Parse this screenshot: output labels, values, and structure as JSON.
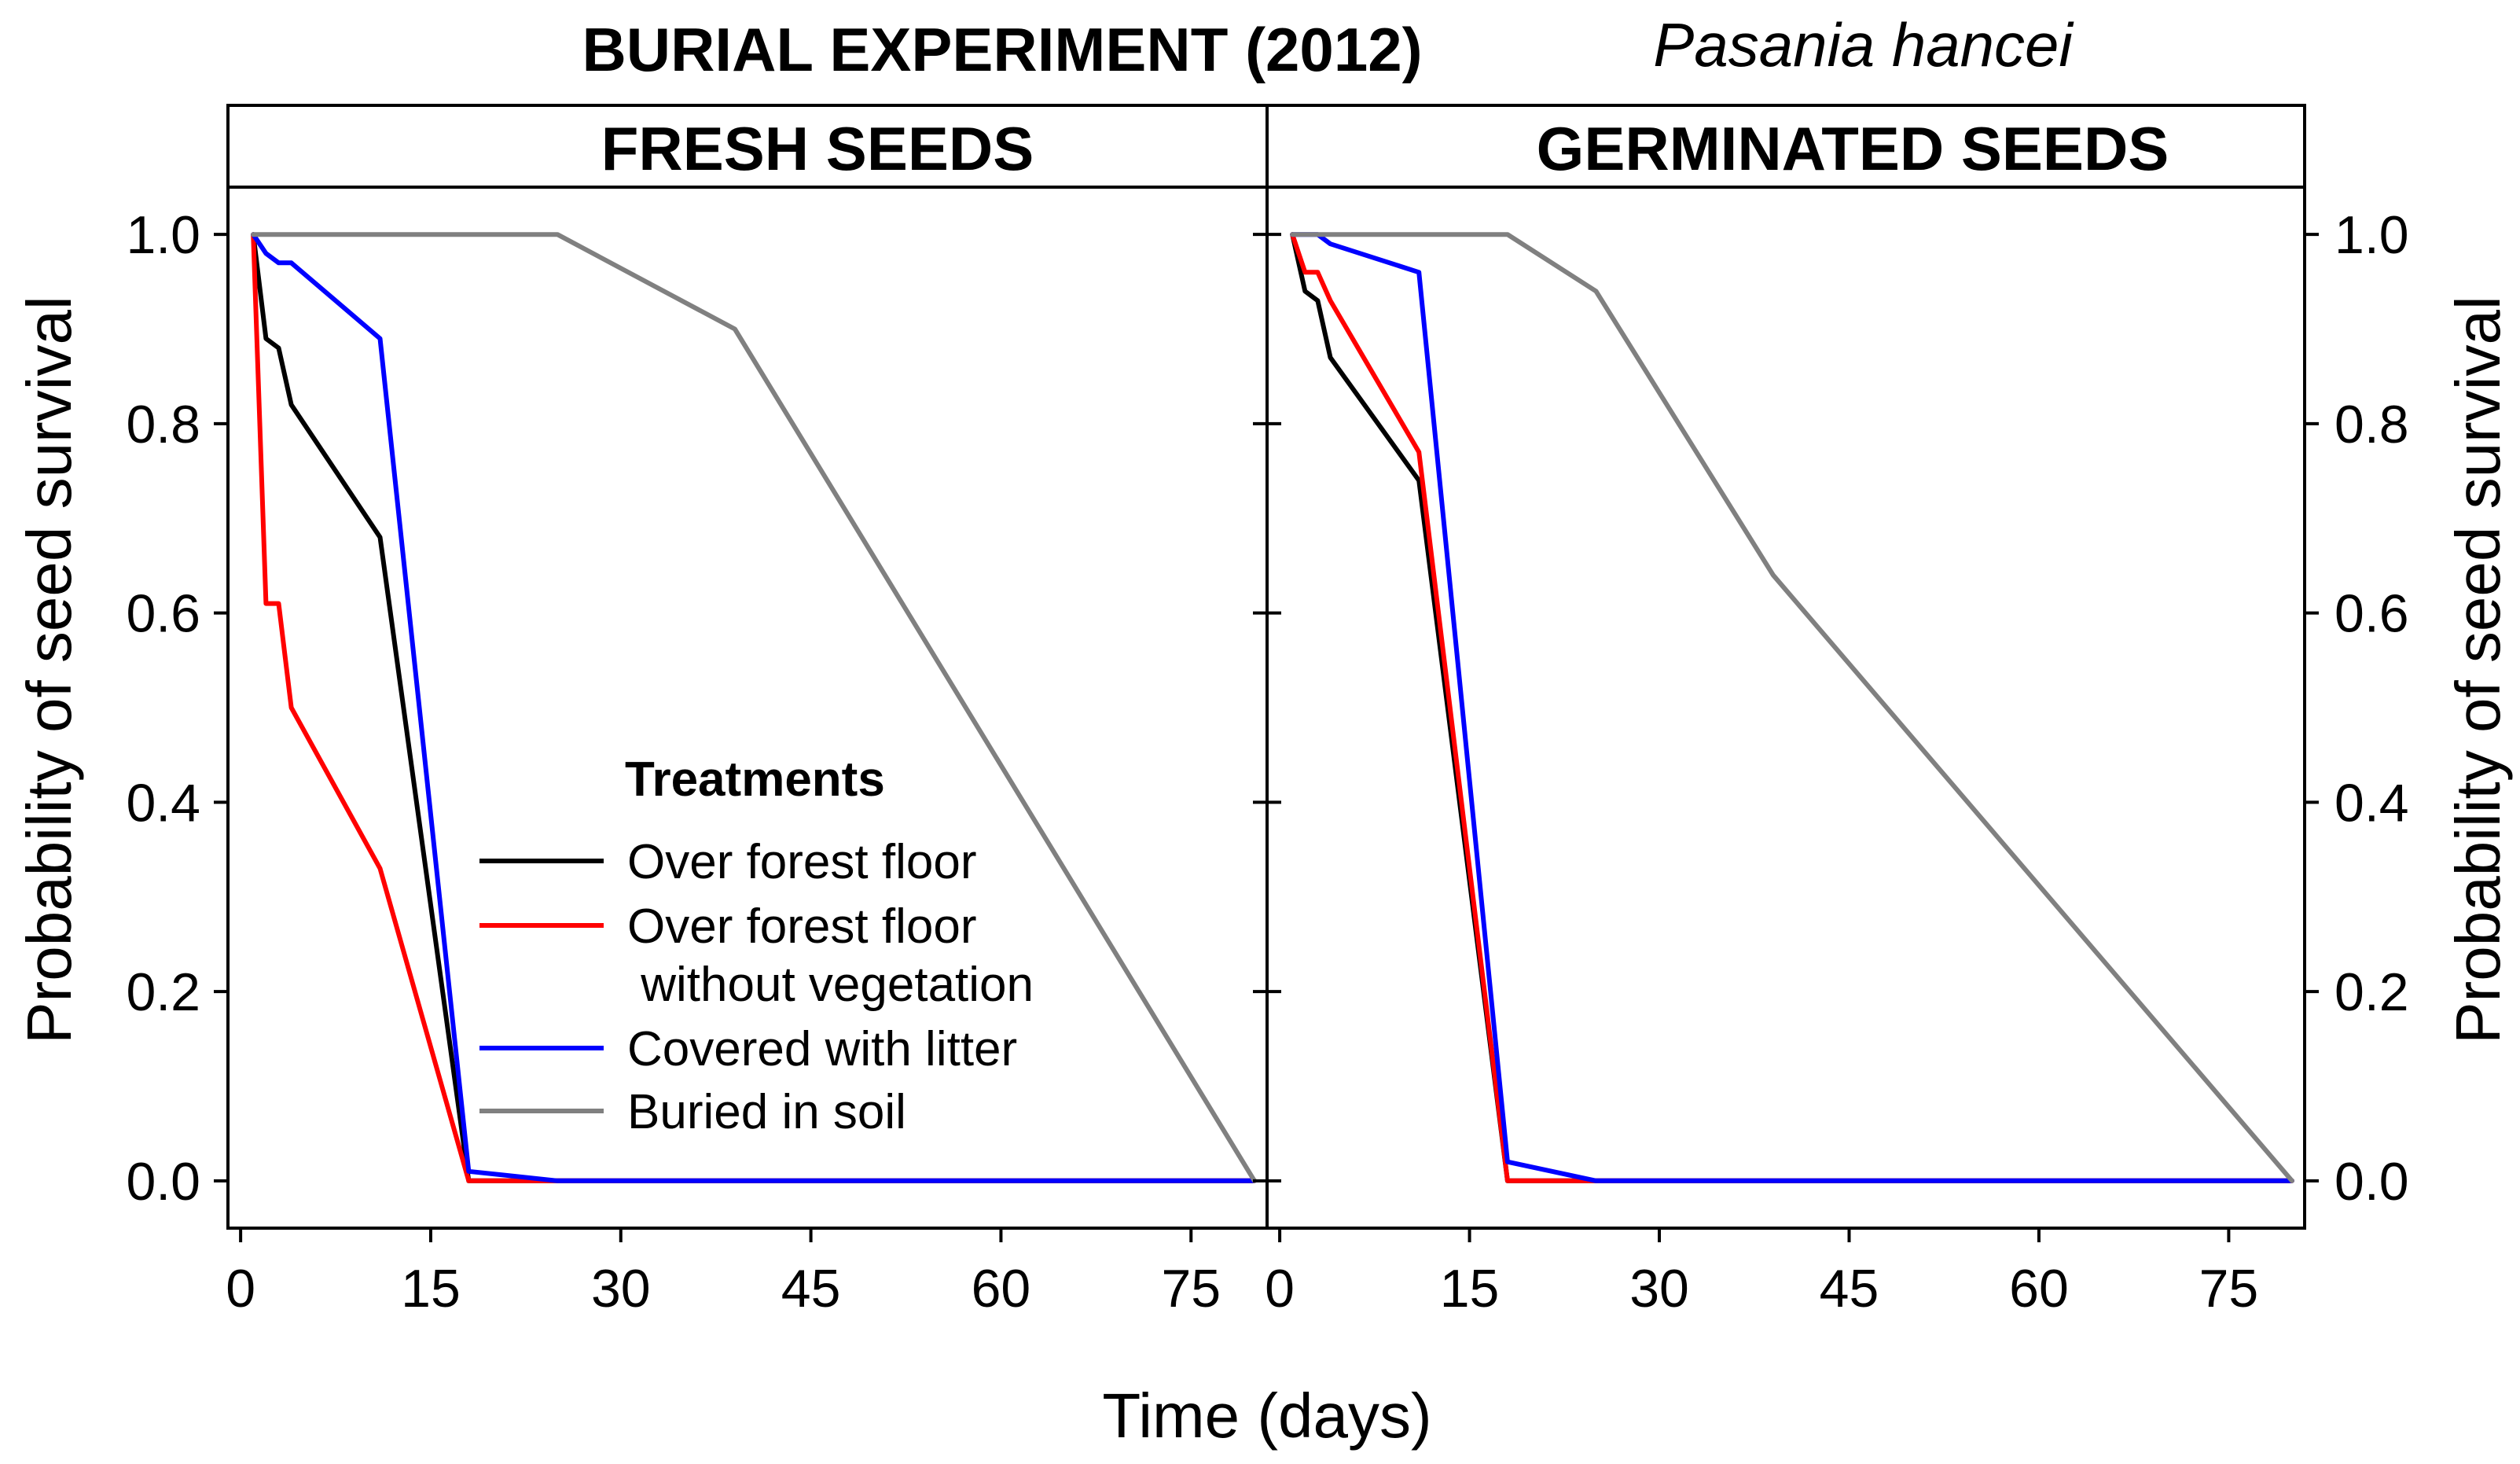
{
  "figure": {
    "title": "BURIAL EXPERIMENT (2012)",
    "species": "Pasania hancei",
    "xlabel": "Time (days)",
    "ylabel_left": "Probability of seed survival",
    "ylabel_right": "Probability of seed survival",
    "legend_title": "Treatments"
  },
  "colors": {
    "Over forest floor": "#000000",
    "Over forest floor without vegetation": "#ff0000",
    "Covered with litter": "#0000ff",
    "Buried in soil": "#808080"
  },
  "chart_data": [
    {
      "type": "line",
      "panel": "FRESH SEEDS",
      "xlim": [
        -1,
        81
      ],
      "ylim": [
        -0.05,
        1.05
      ],
      "xticks": [
        0,
        15,
        30,
        45,
        60,
        75
      ],
      "xtick_labels": [
        "0",
        "15",
        "30",
        "45",
        "60",
        "75"
      ],
      "yticks": [
        0.0,
        0.2,
        0.4,
        0.6,
        0.8,
        1.0
      ],
      "ytick_labels": [
        "0.0",
        "0.2",
        "0.4",
        "0.6",
        "0.8",
        "1.0"
      ],
      "series": [
        {
          "name": "Over forest floor",
          "color": "#000000",
          "x": [
            1,
            2,
            3,
            4,
            11,
            18,
            25,
            80
          ],
          "y": [
            1.0,
            0.89,
            0.88,
            0.82,
            0.68,
            0.0,
            0.0,
            0.0
          ]
        },
        {
          "name": "Over forest floor without vegetation",
          "color": "#ff0000",
          "x": [
            1,
            2,
            3,
            4,
            11,
            18,
            25,
            80
          ],
          "y": [
            1.0,
            0.61,
            0.61,
            0.5,
            0.33,
            0.0,
            0.0,
            0.0
          ]
        },
        {
          "name": "Covered with litter",
          "color": "#0000ff",
          "x": [
            1,
            2,
            3,
            4,
            11,
            18,
            25,
            80
          ],
          "y": [
            1.0,
            0.98,
            0.97,
            0.97,
            0.89,
            0.01,
            0.0,
            0.0
          ]
        },
        {
          "name": "Buried in soil",
          "color": "#808080",
          "x": [
            1,
            25,
            39,
            80
          ],
          "y": [
            1.0,
            1.0,
            0.9,
            0.0
          ]
        }
      ]
    },
    {
      "type": "line",
      "panel": "GERMINATED SEEDS",
      "xlim": [
        -1,
        81
      ],
      "ylim": [
        -0.05,
        1.05
      ],
      "xticks": [
        0,
        15,
        30,
        45,
        60,
        75
      ],
      "xtick_labels": [
        "0",
        "15",
        "30",
        "45",
        "60",
        "75"
      ],
      "yticks": [
        0.0,
        0.2,
        0.4,
        0.6,
        0.8,
        1.0
      ],
      "ytick_labels": [
        "0.0",
        "0.2",
        "0.4",
        "0.6",
        "0.8",
        "1.0"
      ],
      "series": [
        {
          "name": "Over forest floor",
          "color": "#000000",
          "x": [
            1,
            2,
            3,
            4,
            11,
            18,
            25,
            80
          ],
          "y": [
            1.0,
            0.94,
            0.93,
            0.87,
            0.74,
            0.0,
            0.0,
            0.0
          ]
        },
        {
          "name": "Over forest floor without vegetation",
          "color": "#ff0000",
          "x": [
            1,
            2,
            3,
            4,
            11,
            18,
            25,
            80
          ],
          "y": [
            1.0,
            0.96,
            0.96,
            0.93,
            0.77,
            0.0,
            0.0,
            0.0
          ]
        },
        {
          "name": "Covered with litter",
          "color": "#0000ff",
          "x": [
            1,
            3,
            4,
            11,
            18,
            25,
            80
          ],
          "y": [
            1.0,
            1.0,
            0.99,
            0.96,
            0.02,
            0.0,
            0.0
          ]
        },
        {
          "name": "Buried in soil",
          "color": "#808080",
          "x": [
            1,
            18,
            25,
            39,
            80
          ],
          "y": [
            1.0,
            1.0,
            0.94,
            0.64,
            0.0
          ]
        }
      ]
    }
  ],
  "legend": {
    "title": "Treatments",
    "entries": [
      {
        "label_lines": [
          "Over forest floor"
        ],
        "color": "#000000"
      },
      {
        "label_lines": [
          "Over forest floor",
          " without vegetation"
        ],
        "color": "#ff0000"
      },
      {
        "label_lines": [
          "Covered with litter"
        ],
        "color": "#0000ff"
      },
      {
        "label_lines": [
          "Buried in soil"
        ],
        "color": "#808080"
      }
    ]
  }
}
